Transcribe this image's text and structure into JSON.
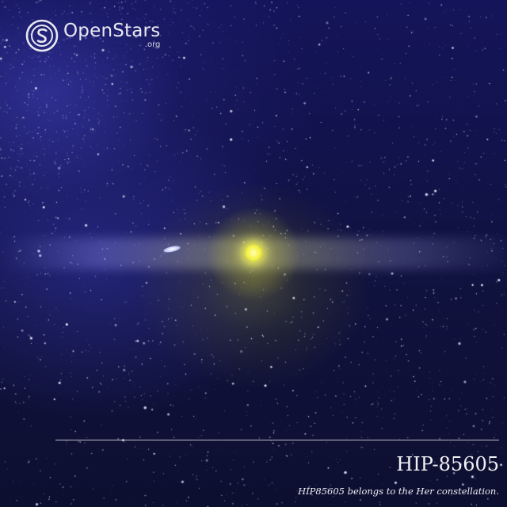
{
  "logo": {
    "name": "OpenStars",
    "tld": ".org",
    "icon": "s-circle-logo-icon"
  },
  "star": {
    "designation": "HIP-85605",
    "caption": "HIP85605 belongs to the Her constellation."
  },
  "colors": {
    "sky": "#0b0d2e",
    "milky_way": "#4646c8",
    "star_core": "#f4f040",
    "text": "#f2f2f6"
  }
}
